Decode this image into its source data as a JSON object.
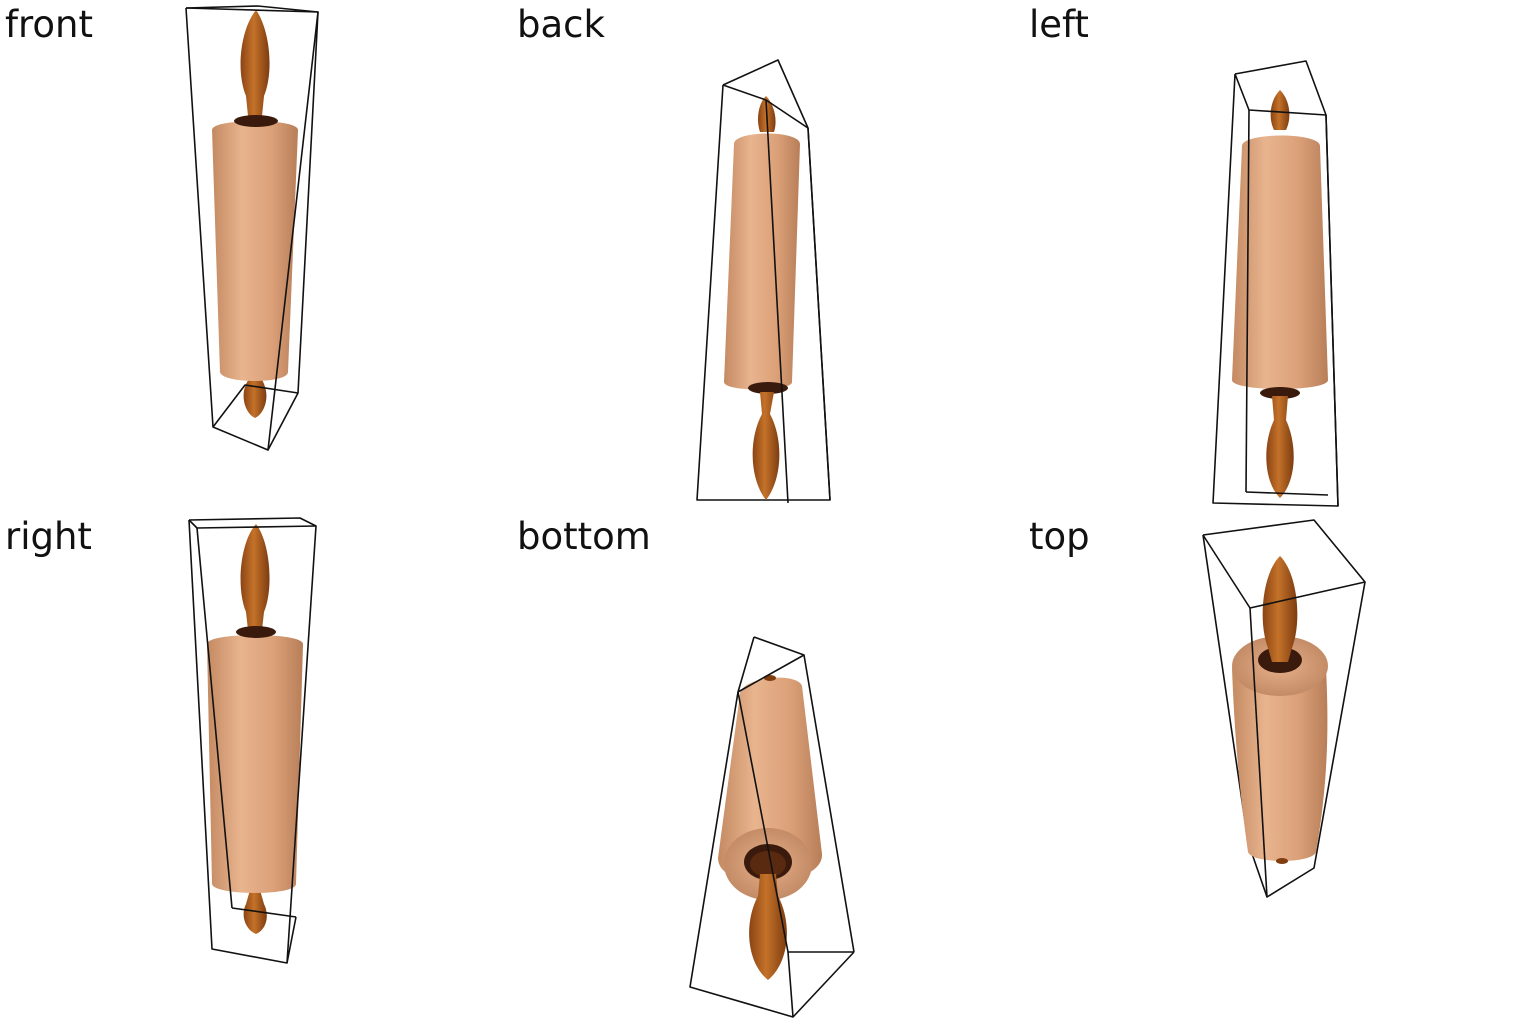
{
  "views": [
    {
      "id": "front",
      "label": "front"
    },
    {
      "id": "back",
      "label": "back"
    },
    {
      "id": "left",
      "label": "left"
    },
    {
      "id": "right",
      "label": "right"
    },
    {
      "id": "bottom",
      "label": "bottom"
    },
    {
      "id": "top",
      "label": "top"
    }
  ],
  "colors": {
    "background": "#ffffff",
    "label_text": "#111111",
    "bounding_box": "#111111",
    "barrel_light": "#e8b38c",
    "barrel_mid": "#d59c74",
    "barrel_dark": "#b9805c",
    "handle_light": "#c06f28",
    "handle_dark": "#7f3d10",
    "collar": "#3a1a0c"
  },
  "object": {
    "icon": "rolling-pin-icon"
  }
}
